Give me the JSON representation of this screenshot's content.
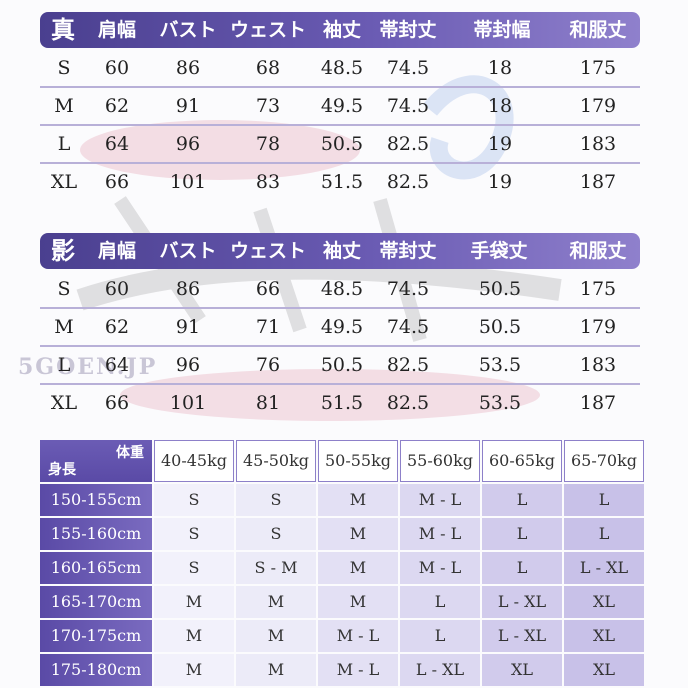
{
  "watermark": {
    "text": "5GOEN.JP"
  },
  "table_shin": {
    "title": "真",
    "headers": [
      "肩幅",
      "バスト",
      "ウェスト",
      "袖丈",
      "帯封丈",
      "帯封幅",
      "和服丈"
    ],
    "rows": [
      [
        "S",
        "60",
        "86",
        "68",
        "48.5",
        "74.5",
        "18",
        "175"
      ],
      [
        "M",
        "62",
        "91",
        "73",
        "49.5",
        "74.5",
        "18",
        "179"
      ],
      [
        "L",
        "64",
        "96",
        "78",
        "50.5",
        "82.5",
        "19",
        "183"
      ],
      [
        "XL",
        "66",
        "101",
        "83",
        "51.5",
        "82.5",
        "19",
        "187"
      ]
    ]
  },
  "table_kage": {
    "title": "影",
    "headers": [
      "肩幅",
      "バスト",
      "ウェスト",
      "袖丈",
      "帯封丈",
      "手袋丈",
      "和服丈"
    ],
    "rows": [
      [
        "S",
        "60",
        "86",
        "66",
        "48.5",
        "74.5",
        "50.5",
        "175"
      ],
      [
        "M",
        "62",
        "91",
        "71",
        "49.5",
        "74.5",
        "50.5",
        "179"
      ],
      [
        "L",
        "64",
        "96",
        "76",
        "50.5",
        "82.5",
        "53.5",
        "183"
      ],
      [
        "XL",
        "66",
        "101",
        "81",
        "51.5",
        "82.5",
        "53.5",
        "187"
      ]
    ]
  },
  "size_chart": {
    "weight_label": "体重",
    "height_label": "身長",
    "weights": [
      "40-45kg",
      "45-50kg",
      "50-55kg",
      "55-60kg",
      "60-65kg",
      "65-70kg"
    ],
    "rows": [
      {
        "height": "150-155cm",
        "sizes": [
          "S",
          "S",
          "M",
          "M - L",
          "L",
          "L"
        ]
      },
      {
        "height": "155-160cm",
        "sizes": [
          "S",
          "S",
          "M",
          "M - L",
          "L",
          "L"
        ]
      },
      {
        "height": "160-165cm",
        "sizes": [
          "S",
          "S - M",
          "M",
          "M - L",
          "L",
          "L - XL"
        ]
      },
      {
        "height": "165-170cm",
        "sizes": [
          "M",
          "M",
          "M",
          "L",
          "L - XL",
          "XL"
        ]
      },
      {
        "height": "170-175cm",
        "sizes": [
          "M",
          "M",
          "M - L",
          "L",
          "L - XL",
          "XL"
        ]
      },
      {
        "height": "175-180cm",
        "sizes": [
          "M",
          "M",
          "M - L",
          "L - XL",
          "XL",
          "XL"
        ]
      }
    ]
  }
}
